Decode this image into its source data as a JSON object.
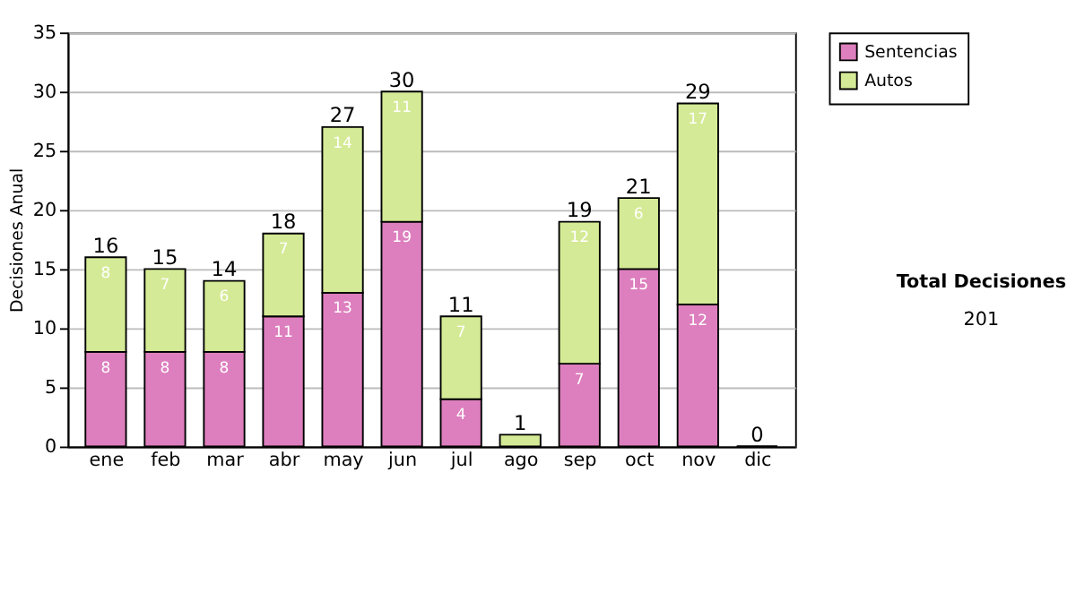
{
  "chart_data": {
    "type": "bar",
    "stacked": true,
    "ylabel": "Decisiones Anual",
    "categories": [
      "ene",
      "feb",
      "mar",
      "abr",
      "may",
      "jun",
      "jul",
      "ago",
      "sep",
      "oct",
      "nov",
      "dic"
    ],
    "series": [
      {
        "name": "Sentencias",
        "color": "#dd7fbe",
        "values": [
          8,
          8,
          8,
          11,
          13,
          19,
          4,
          0,
          7,
          15,
          12,
          0
        ],
        "value_labels": [
          "8",
          "8",
          "8",
          "11",
          "13",
          "19",
          "4",
          null,
          "7",
          "15",
          "12",
          null
        ]
      },
      {
        "name": "Autos",
        "color": "#d5ea96",
        "values": [
          8,
          7,
          6,
          7,
          14,
          11,
          7,
          1,
          12,
          6,
          17,
          0
        ],
        "value_labels": [
          "8",
          "7",
          "6",
          "7",
          "14",
          "11",
          "7",
          null,
          "12",
          "6",
          "17",
          null
        ]
      }
    ],
    "totals": [
      "16",
      "15",
      "14",
      "18",
      "27",
      "30",
      "11",
      "1",
      "19",
      "21",
      "29",
      "0"
    ],
    "ylim": [
      0,
      35
    ],
    "yticks": [
      0,
      5,
      10,
      15,
      20,
      25,
      30,
      35
    ],
    "grid": "y",
    "legend": "right",
    "annotations": [
      "Total Decisiones",
      "201"
    ]
  }
}
